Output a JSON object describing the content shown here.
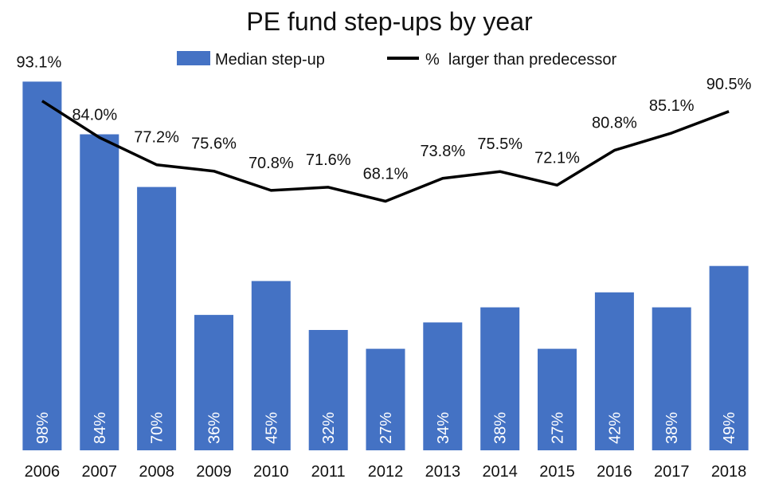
{
  "chart_data": {
    "type": "bar",
    "title": "PE fund step-ups by year",
    "categories": [
      "2006",
      "2007",
      "2008",
      "2009",
      "2010",
      "2011",
      "2012",
      "2013",
      "2014",
      "2015",
      "2016",
      "2017",
      "2018"
    ],
    "series": [
      {
        "name": "Median step-up",
        "type": "bar",
        "values": [
          98,
          84,
          70,
          36,
          45,
          32,
          27,
          34,
          38,
          27,
          42,
          38,
          49
        ],
        "labels": [
          "98%",
          "84%",
          "70%",
          "36%",
          "45%",
          "32%",
          "27%",
          "34%",
          "38%",
          "27%",
          "42%",
          "38%",
          "49%"
        ],
        "color": "#4472C4"
      },
      {
        "name": "%  larger than predecessor",
        "type": "line",
        "values": [
          93.1,
          84.0,
          77.2,
          75.6,
          70.8,
          71.6,
          68.1,
          73.8,
          75.5,
          72.1,
          80.8,
          85.1,
          90.5
        ],
        "labels": [
          "93.1%",
          "84.0%",
          "77.2%",
          "75.6%",
          "70.8%",
          "71.6%",
          "68.1%",
          "73.8%",
          "75.5%",
          "72.1%",
          "80.8%",
          "85.1%",
          "90.5%"
        ],
        "color": "#000000"
      }
    ],
    "legend_position": "top-center",
    "grid": false
  }
}
